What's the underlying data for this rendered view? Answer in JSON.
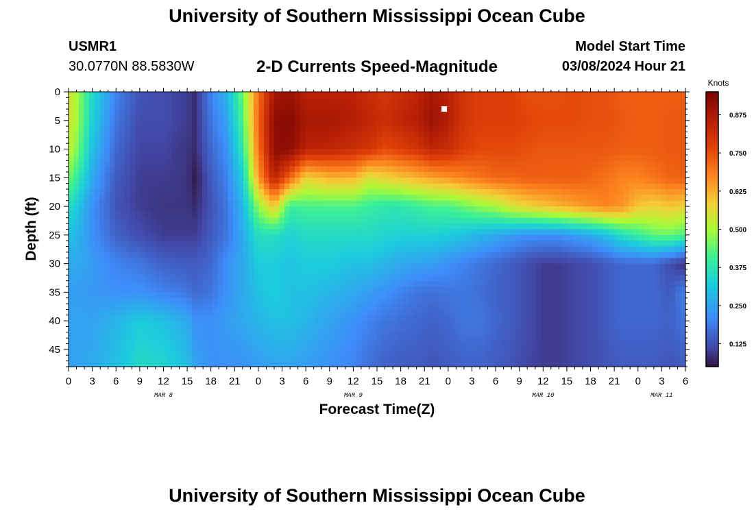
{
  "header": {
    "title": "University of Southern Mississippi Ocean Cube",
    "station_id": "USMR1",
    "station_location": "30.0770N  88.5830W",
    "chart_title": "2-D Currents Speed-Magnitude",
    "model_label": "Model Start Time",
    "model_time": "03/08/2024 Hour 21"
  },
  "footer": {
    "title": "University of Southern Mississippi Ocean Cube"
  },
  "colors": {
    "background": "#ffffff",
    "axis": "#000000"
  },
  "chart_data": {
    "type": "heatmap",
    "xlabel": "Forecast Time(Z)",
    "ylabel": "Depth (ft)",
    "x_unit": "hours since 03/08/2024 00Z",
    "xlim": [
      0,
      78
    ],
    "ylim": [
      48,
      0
    ],
    "x_ticks": [
      {
        "x": 0,
        "label": "0"
      },
      {
        "x": 3,
        "label": "3"
      },
      {
        "x": 6,
        "label": "6"
      },
      {
        "x": 9,
        "label": "9"
      },
      {
        "x": 12,
        "label": "12"
      },
      {
        "x": 15,
        "label": "15"
      },
      {
        "x": 18,
        "label": "18"
      },
      {
        "x": 21,
        "label": "21"
      },
      {
        "x": 24,
        "label": "0"
      },
      {
        "x": 27,
        "label": "3"
      },
      {
        "x": 30,
        "label": "6"
      },
      {
        "x": 33,
        "label": "9"
      },
      {
        "x": 36,
        "label": "12"
      },
      {
        "x": 39,
        "label": "15"
      },
      {
        "x": 42,
        "label": "18"
      },
      {
        "x": 45,
        "label": "21"
      },
      {
        "x": 48,
        "label": "0"
      },
      {
        "x": 51,
        "label": "3"
      },
      {
        "x": 54,
        "label": "6"
      },
      {
        "x": 57,
        "label": "9"
      },
      {
        "x": 60,
        "label": "12"
      },
      {
        "x": 63,
        "label": "15"
      },
      {
        "x": 66,
        "label": "18"
      },
      {
        "x": 69,
        "label": "21"
      },
      {
        "x": 72,
        "label": "0"
      },
      {
        "x": 75,
        "label": "3"
      },
      {
        "x": 78,
        "label": "6"
      }
    ],
    "date_labels": [
      {
        "x": 12,
        "label": "MAR 8"
      },
      {
        "x": 36,
        "label": "MAR 9"
      },
      {
        "x": 60,
        "label": "MAR 10"
      },
      {
        "x": 75,
        "label": "MAR 11"
      }
    ],
    "y_ticks": [
      0,
      5,
      10,
      15,
      20,
      25,
      30,
      35,
      40,
      45
    ],
    "colorbar": {
      "label": "Knots",
      "range": [
        0.05,
        0.95
      ],
      "ticks": [
        "0.125",
        "0.250",
        "0.375",
        "0.500",
        "0.625",
        "0.750",
        "0.875"
      ]
    },
    "value_unit": "knots",
    "grid": false,
    "depth_levels_ft": [
      0,
      5,
      10,
      15,
      20,
      25,
      30,
      35,
      40,
      48
    ],
    "depth_profile_controls_hours": [
      0,
      1,
      3,
      6,
      9,
      12,
      15,
      16,
      18,
      20,
      22,
      24,
      26,
      28,
      30,
      33,
      36,
      38,
      40,
      42,
      44,
      46,
      48,
      50,
      52,
      54,
      56,
      58,
      60,
      62,
      64,
      66,
      68,
      70,
      72,
      74,
      76,
      78
    ],
    "speed_knots_by_depth": [
      [
        0.55,
        0.5,
        0.35,
        0.2,
        0.13,
        0.12,
        0.1,
        0.08,
        0.2,
        0.28,
        0.45,
        0.7,
        0.88,
        0.9,
        0.85,
        0.85,
        0.85,
        0.82,
        0.8,
        0.82,
        0.84,
        0.88,
        0.85,
        0.8,
        0.78,
        0.78,
        0.78,
        0.75,
        0.75,
        0.75,
        0.76,
        0.75,
        0.75,
        0.73,
        0.73,
        0.73,
        0.73,
        0.73
      ],
      [
        0.55,
        0.5,
        0.33,
        0.18,
        0.12,
        0.12,
        0.1,
        0.08,
        0.18,
        0.25,
        0.42,
        0.72,
        0.92,
        0.93,
        0.88,
        0.88,
        0.86,
        0.84,
        0.82,
        0.84,
        0.86,
        0.9,
        0.86,
        0.8,
        0.78,
        0.78,
        0.78,
        0.77,
        0.76,
        0.76,
        0.76,
        0.75,
        0.75,
        0.74,
        0.73,
        0.73,
        0.74,
        0.74
      ],
      [
        0.53,
        0.47,
        0.3,
        0.16,
        0.11,
        0.11,
        0.09,
        0.08,
        0.16,
        0.22,
        0.38,
        0.7,
        0.92,
        0.92,
        0.85,
        0.84,
        0.82,
        0.8,
        0.76,
        0.78,
        0.8,
        0.84,
        0.82,
        0.78,
        0.76,
        0.76,
        0.76,
        0.75,
        0.74,
        0.74,
        0.74,
        0.74,
        0.74,
        0.73,
        0.73,
        0.73,
        0.74,
        0.74
      ],
      [
        0.46,
        0.4,
        0.26,
        0.14,
        0.1,
        0.1,
        0.09,
        0.06,
        0.14,
        0.2,
        0.32,
        0.65,
        0.85,
        0.72,
        0.58,
        0.62,
        0.62,
        0.55,
        0.58,
        0.6,
        0.62,
        0.64,
        0.66,
        0.68,
        0.7,
        0.72,
        0.72,
        0.73,
        0.73,
        0.73,
        0.73,
        0.72,
        0.7,
        0.68,
        0.68,
        0.7,
        0.72,
        0.73
      ],
      [
        0.36,
        0.32,
        0.22,
        0.13,
        0.1,
        0.09,
        0.09,
        0.08,
        0.13,
        0.18,
        0.28,
        0.48,
        0.6,
        0.4,
        0.42,
        0.42,
        0.42,
        0.4,
        0.38,
        0.38,
        0.4,
        0.42,
        0.42,
        0.45,
        0.48,
        0.5,
        0.55,
        0.58,
        0.6,
        0.62,
        0.64,
        0.66,
        0.68,
        0.66,
        0.6,
        0.58,
        0.6,
        0.58
      ],
      [
        0.3,
        0.28,
        0.22,
        0.15,
        0.12,
        0.1,
        0.1,
        0.1,
        0.14,
        0.18,
        0.26,
        0.36,
        0.36,
        0.33,
        0.35,
        0.35,
        0.35,
        0.35,
        0.34,
        0.33,
        0.33,
        0.33,
        0.32,
        0.3,
        0.28,
        0.26,
        0.24,
        0.22,
        0.22,
        0.22,
        0.24,
        0.26,
        0.3,
        0.36,
        0.4,
        0.44,
        0.45,
        0.42
      ],
      [
        0.26,
        0.26,
        0.24,
        0.2,
        0.18,
        0.15,
        0.14,
        0.14,
        0.16,
        0.22,
        0.26,
        0.32,
        0.32,
        0.3,
        0.32,
        0.32,
        0.3,
        0.3,
        0.28,
        0.26,
        0.25,
        0.24,
        0.22,
        0.2,
        0.18,
        0.16,
        0.14,
        0.12,
        0.1,
        0.1,
        0.11,
        0.12,
        0.14,
        0.16,
        0.16,
        0.16,
        0.12,
        0.08
      ],
      [
        0.24,
        0.24,
        0.23,
        0.22,
        0.22,
        0.2,
        0.18,
        0.16,
        0.18,
        0.22,
        0.26,
        0.3,
        0.32,
        0.3,
        0.3,
        0.28,
        0.26,
        0.24,
        0.22,
        0.2,
        0.18,
        0.17,
        0.18,
        0.18,
        0.17,
        0.15,
        0.14,
        0.12,
        0.1,
        0.1,
        0.11,
        0.12,
        0.14,
        0.16,
        0.16,
        0.16,
        0.14,
        0.2
      ],
      [
        0.25,
        0.25,
        0.25,
        0.28,
        0.32,
        0.3,
        0.26,
        0.22,
        0.22,
        0.24,
        0.26,
        0.28,
        0.3,
        0.3,
        0.28,
        0.25,
        0.22,
        0.2,
        0.18,
        0.17,
        0.16,
        0.15,
        0.16,
        0.18,
        0.18,
        0.16,
        0.14,
        0.12,
        0.1,
        0.1,
        0.11,
        0.12,
        0.14,
        0.16,
        0.16,
        0.16,
        0.15,
        0.18
      ],
      [
        0.24,
        0.25,
        0.26,
        0.3,
        0.35,
        0.34,
        0.3,
        0.25,
        0.22,
        0.22,
        0.22,
        0.24,
        0.25,
        0.25,
        0.24,
        0.22,
        0.2,
        0.17,
        0.15,
        0.14,
        0.14,
        0.13,
        0.14,
        0.15,
        0.15,
        0.14,
        0.13,
        0.11,
        0.1,
        0.1,
        0.11,
        0.12,
        0.13,
        0.14,
        0.14,
        0.14,
        0.13,
        0.14
      ]
    ],
    "annotations": [
      {
        "type": "marker",
        "x": 47.5,
        "y": 3,
        "color": "#ffffff"
      }
    ]
  }
}
